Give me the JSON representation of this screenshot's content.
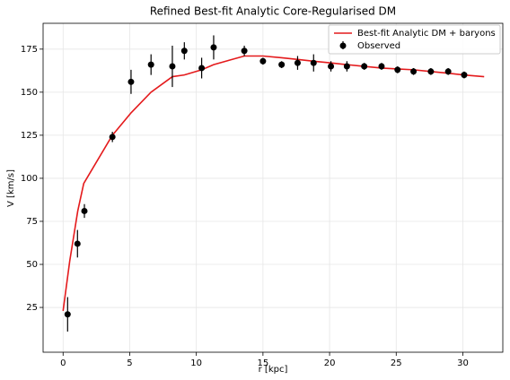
{
  "chart_data": {
    "type": "line",
    "title": "Refined Best-fit Analytic Core-Regularised DM",
    "xlabel": "r [kpc]",
    "ylabel": "V [km/s]",
    "xlim": [
      -1.5,
      33
    ],
    "ylim": [
      -1,
      190
    ],
    "xticks": [
      0,
      5,
      10,
      15,
      20,
      25,
      30
    ],
    "yticks": [
      25,
      50,
      75,
      100,
      125,
      150,
      175
    ],
    "grid": true,
    "legend": "upper right",
    "series": [
      {
        "name": "Best-fit Analytic DM + baryons",
        "type": "line",
        "color": "#e41a1c",
        "x": [
          0,
          0.5,
          1.1,
          1.55,
          3.7,
          5.1,
          6.6,
          8.2,
          9.1,
          10.4,
          11.3,
          13.6,
          15.0,
          16.4,
          17.6,
          18.8,
          20.1,
          21.3,
          22.6,
          23.9,
          25.1,
          26.3,
          27.6,
          28.9,
          30.1,
          31.6
        ],
        "values": [
          23,
          52,
          81,
          97,
          125,
          138,
          150,
          159,
          160,
          163,
          166,
          171,
          171,
          170,
          169,
          168,
          167,
          166,
          165,
          164,
          163.5,
          163,
          162,
          161,
          160,
          159
        ]
      },
      {
        "name": "Observed",
        "type": "errorbar",
        "color": "#000000",
        "x": [
          0.34,
          1.08,
          1.6,
          3.7,
          5.1,
          6.6,
          8.2,
          9.1,
          10.4,
          11.3,
          13.6,
          15.0,
          16.4,
          17.6,
          18.8,
          20.1,
          21.3,
          22.6,
          23.9,
          25.1,
          26.3,
          27.6,
          28.9,
          30.1
        ],
        "values": [
          21,
          62,
          81,
          124,
          156,
          166,
          165,
          174,
          164,
          176,
          174,
          168,
          166,
          167,
          167,
          165,
          165,
          165,
          165,
          163,
          162,
          162,
          162,
          160
        ],
        "errors": [
          10,
          8,
          4,
          3,
          7,
          6,
          12,
          5,
          6,
          7,
          3,
          2,
          2,
          4,
          5,
          3,
          3,
          2,
          2,
          2,
          2,
          2,
          2,
          2
        ]
      }
    ]
  }
}
